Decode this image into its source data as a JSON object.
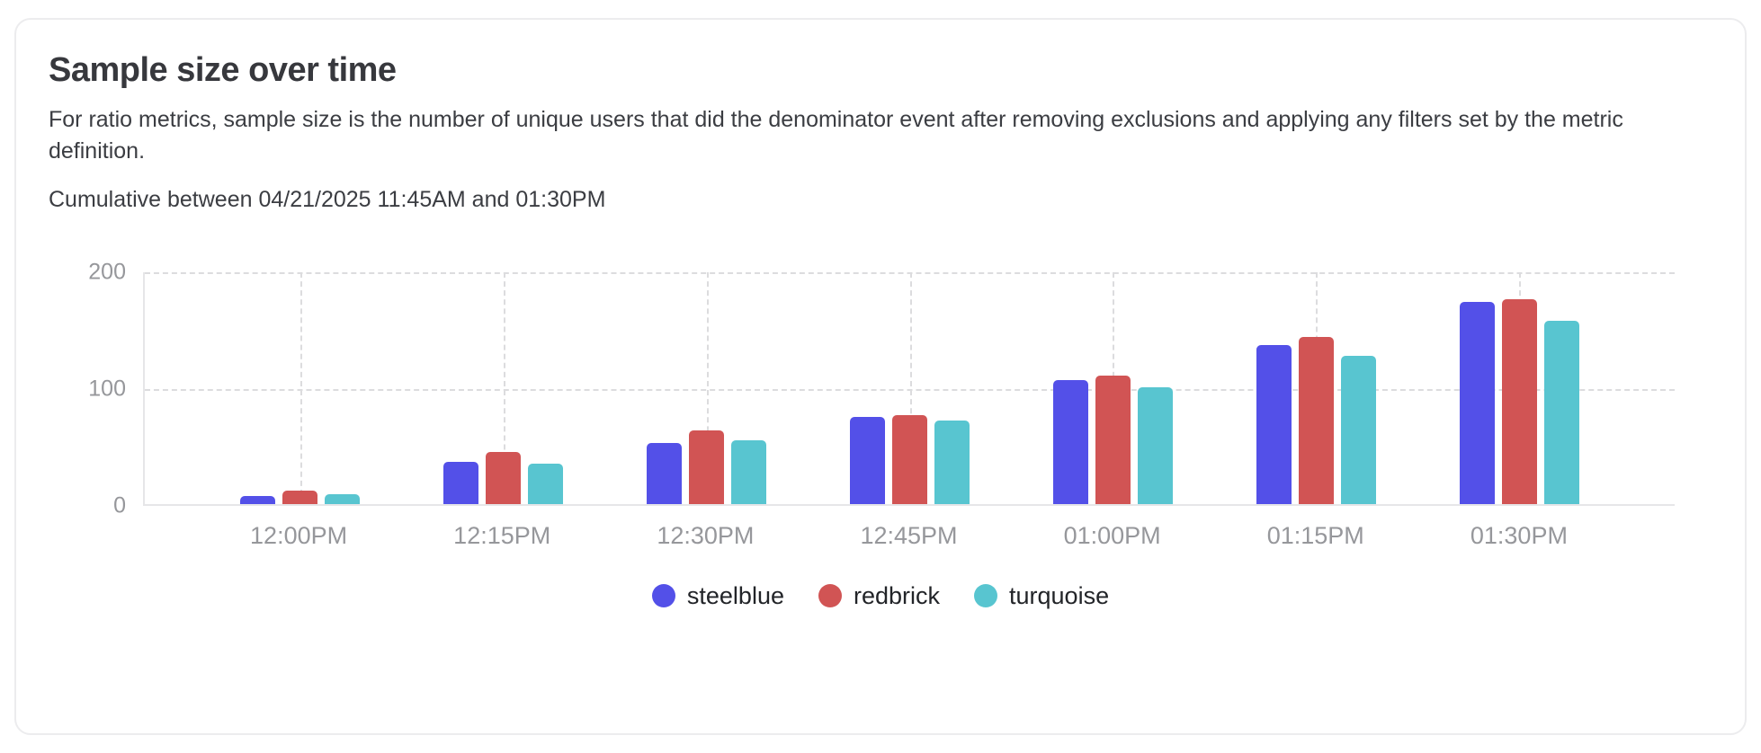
{
  "card": {
    "title": "Sample size over time",
    "description": "For ratio metrics, sample size is the number of unique users that did the denominator event after removing exclusions and applying any filters set by the metric definition.",
    "subtitle": "Cumulative between 04/21/2025 11:45AM and 01:30PM"
  },
  "chart_data": {
    "type": "bar",
    "title": "Sample size over time",
    "xlabel": "",
    "ylabel": "",
    "categories": [
      "12:00PM",
      "12:15PM",
      "12:30PM",
      "12:45PM",
      "01:00PM",
      "01:15PM",
      "01:30PM"
    ],
    "series": [
      {
        "name": "steelblue",
        "color": "#5350e8",
        "values": [
          7,
          36,
          52,
          74,
          106,
          136,
          173
        ]
      },
      {
        "name": "redbrick",
        "color": "#d15454",
        "values": [
          11,
          44,
          63,
          76,
          110,
          143,
          175
        ]
      },
      {
        "name": "turquoise",
        "color": "#58c5d0",
        "values": [
          8,
          34,
          54,
          71,
          100,
          127,
          157
        ]
      }
    ],
    "ylim": [
      0,
      200
    ],
    "yticks": [
      0,
      100,
      200
    ],
    "grid": "dashed-horizontal-and-vertical",
    "legend_position": "bottom"
  }
}
